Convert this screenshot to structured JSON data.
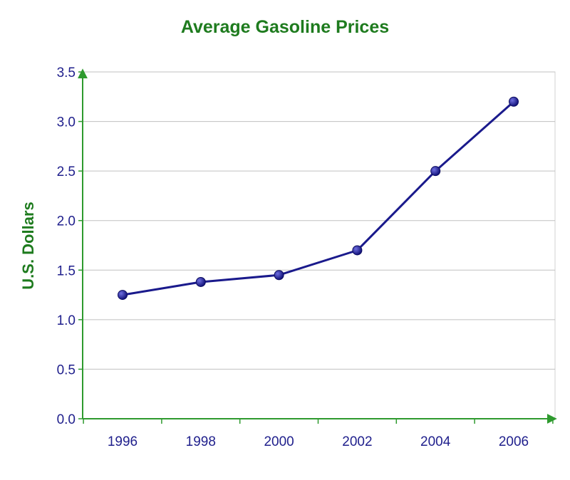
{
  "colors": {
    "title": "#1e7b1e",
    "axis": "#2e9a2e",
    "tick_text": "#1f1f8c",
    "line": "#1a1a8c",
    "grid": "#c0c0c0",
    "plot_border": "#d0d0d0"
  },
  "chart_data": {
    "type": "line",
    "title": "Average Gasoline Prices",
    "xlabel": "",
    "ylabel": "U.S. Dollars",
    "categories": [
      "1996",
      "1998",
      "2000",
      "2002",
      "2004",
      "2006"
    ],
    "series": [
      {
        "values": [
          1.25,
          1.38,
          1.45,
          1.7,
          2.5,
          3.2
        ]
      }
    ],
    "ylim": [
      0,
      3.5
    ],
    "yticks": [
      "0.0",
      "0.5",
      "1.0",
      "1.5",
      "2.0",
      "2.5",
      "3.0",
      "3.5"
    ],
    "grid": true,
    "legend": "none"
  }
}
